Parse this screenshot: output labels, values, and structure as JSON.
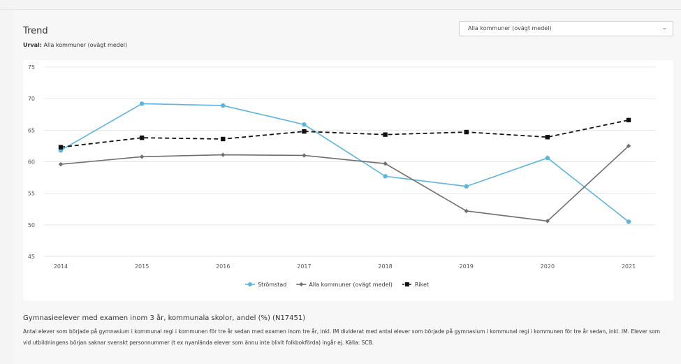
{
  "header": {
    "title": "Trend",
    "urval_label": "Urval:",
    "urval_value": "Alla kommuner (ovägt medel)"
  },
  "dropdown": {
    "selected": "Alla kommuner (ovägt medel)",
    "icon": "chevron-down-icon"
  },
  "chart_data": {
    "type": "line",
    "categories": [
      "2014",
      "2015",
      "2016",
      "2017",
      "2018",
      "2019",
      "2020",
      "2021"
    ],
    "ylim": [
      45,
      75
    ],
    "yticks": [
      "45",
      "50",
      "55",
      "60",
      "65",
      "70",
      "75"
    ],
    "grid": true,
    "legend_position": "bottom",
    "series": [
      {
        "name": "Strömstad",
        "color": "#5bb5e0",
        "marker": "circle",
        "dashed": false,
        "values": [
          61.8,
          69.2,
          68.9,
          65.9,
          57.7,
          56.1,
          60.6,
          50.5
        ]
      },
      {
        "name": "Alla kommuner (ovägt medel)",
        "color": "#6e6e6e",
        "marker": "diamond",
        "dashed": false,
        "values": [
          59.6,
          60.8,
          61.1,
          61.0,
          59.7,
          52.2,
          50.6,
          62.5
        ]
      },
      {
        "name": "Riket",
        "color": "#111111",
        "marker": "square",
        "dashed": true,
        "values": [
          62.3,
          63.8,
          63.6,
          64.8,
          64.3,
          64.7,
          63.9,
          66.6
        ]
      }
    ]
  },
  "footer": {
    "title": "Gymnasieelever med examen inom 3 år, kommunala skolor, andel (%) (N17451)",
    "description": "Antal elever som började på gymnasium i kommunal regi i kommunen för tre år sedan med examen inom tre år, inkl. IM dividerat med antal elever som började på gymnasium i kommunal regi i kommunen för tre år sedan, inkl. IM. Elever som vid utbildningens början saknar svenskt personnummer (t ex nyanlända elever som ännu inte blivit folkbokförda) ingår ej. Källa: SCB."
  }
}
